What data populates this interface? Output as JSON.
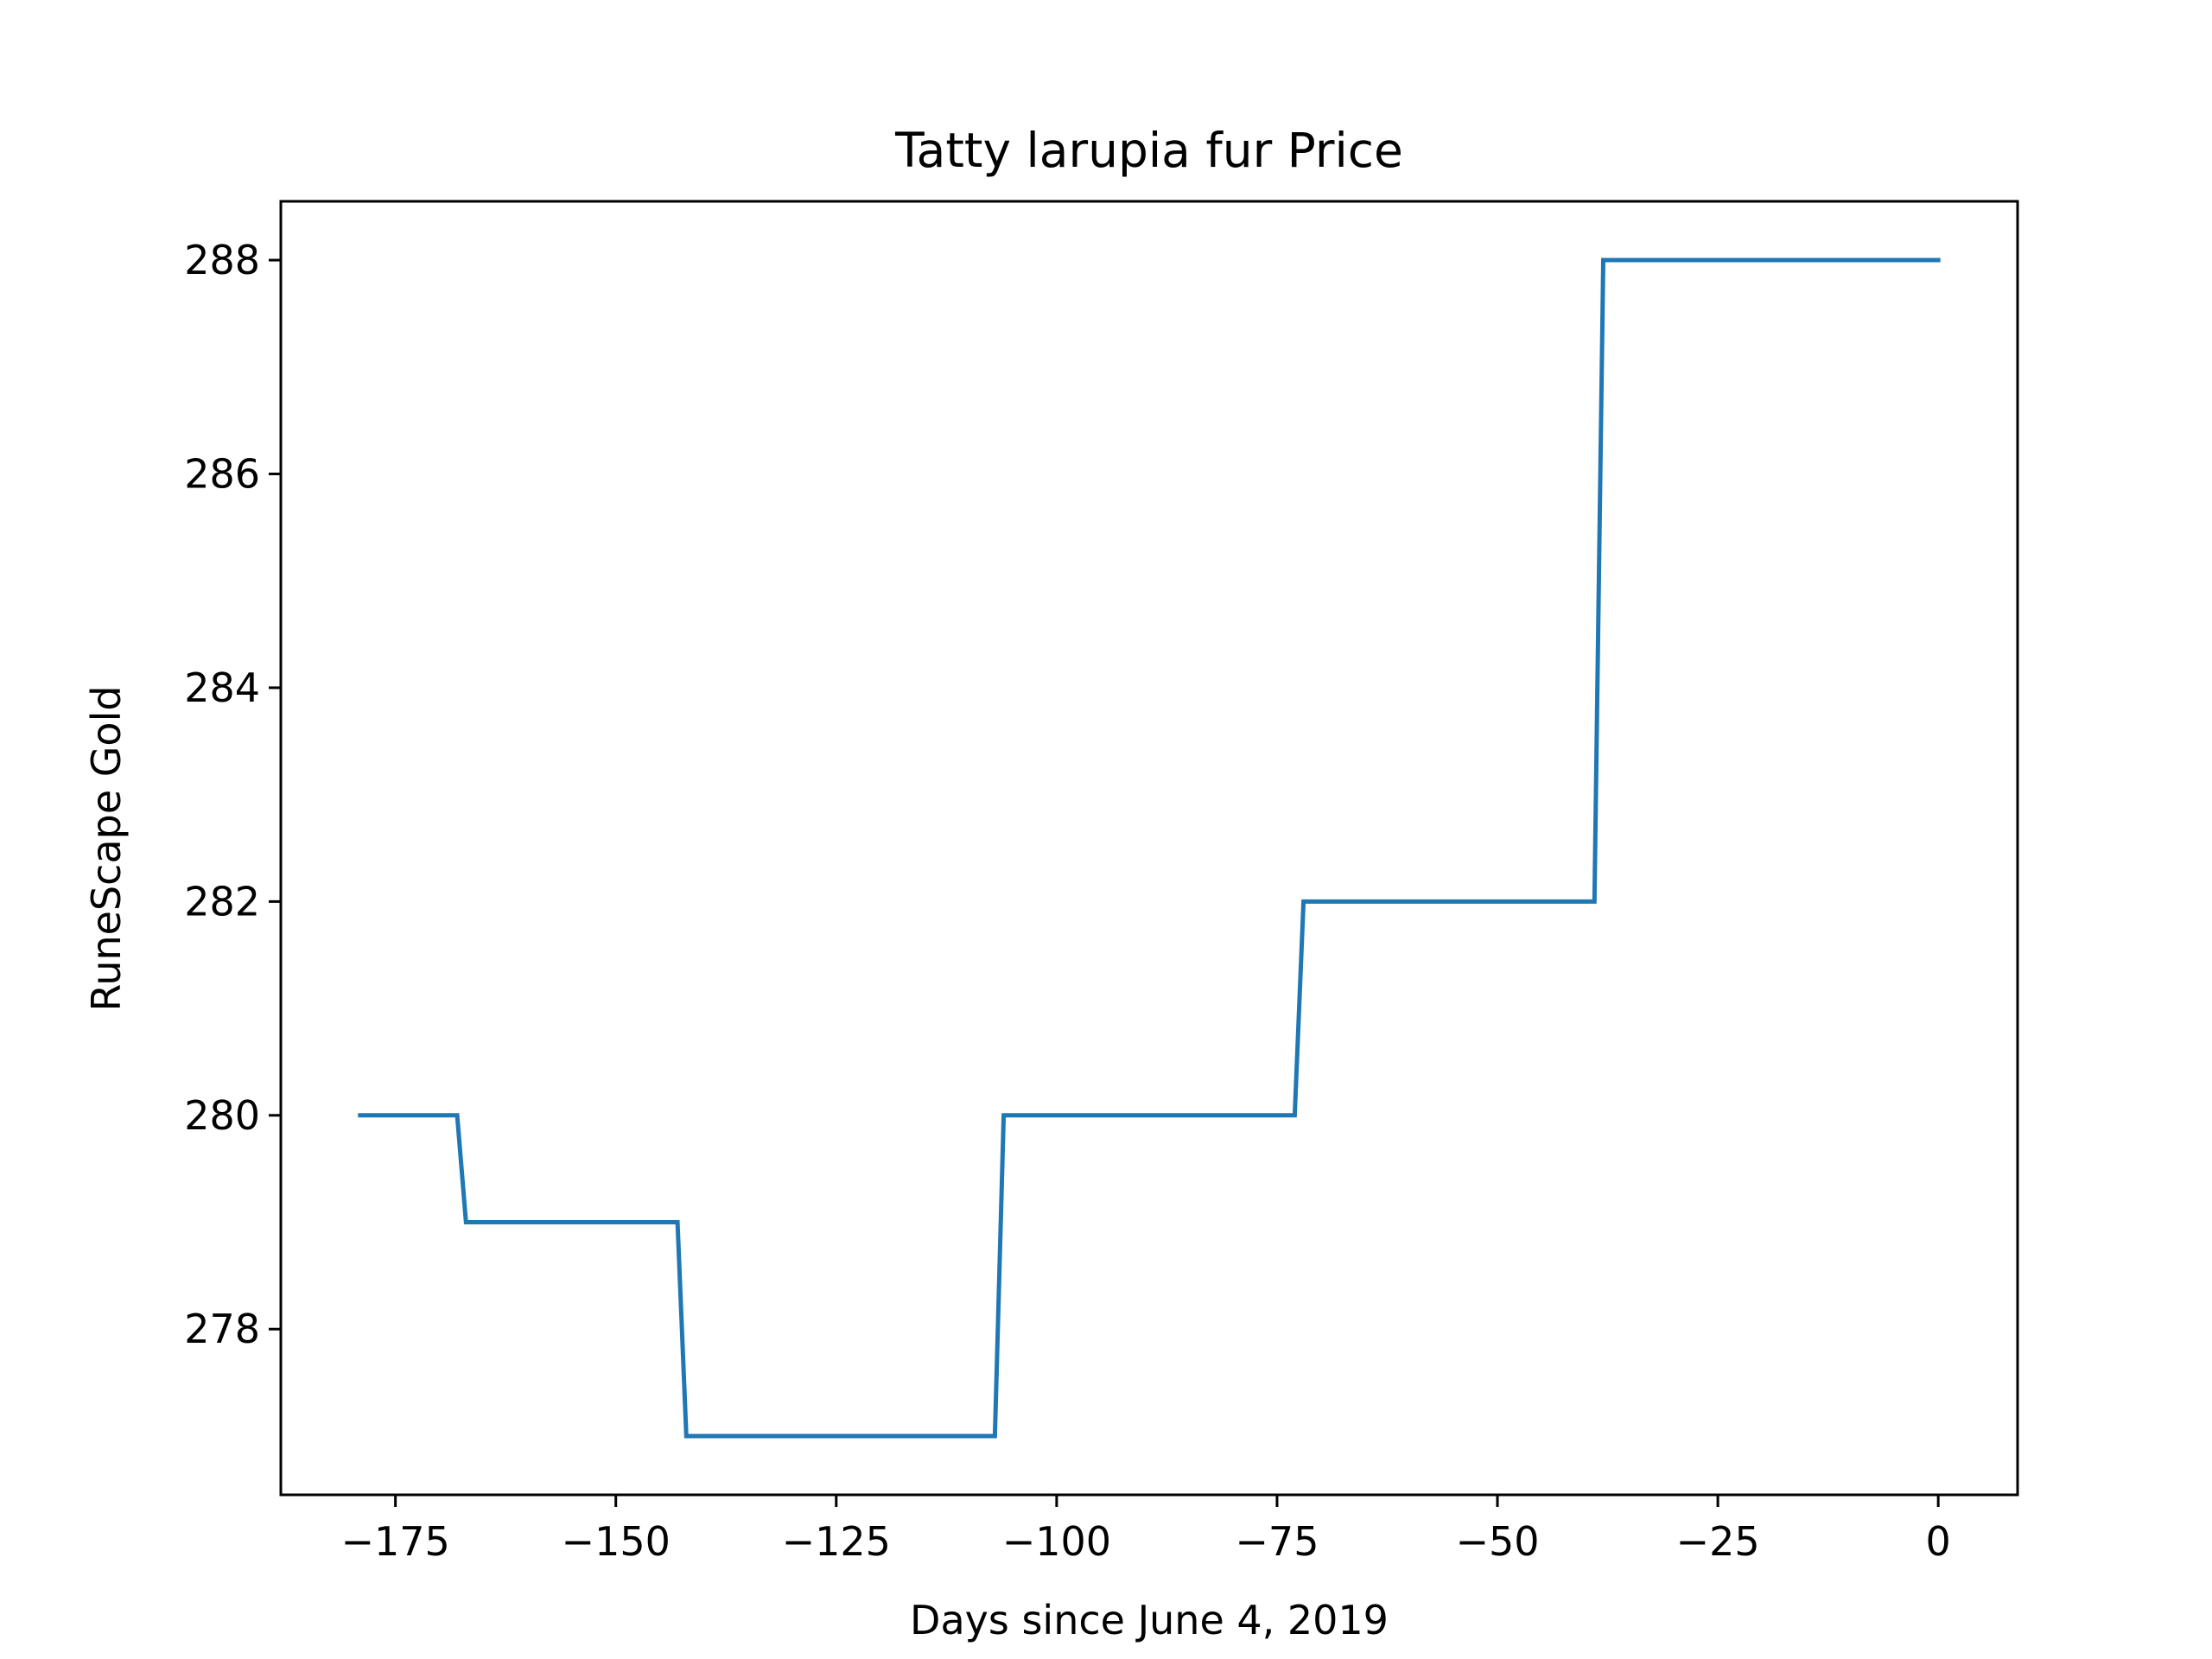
{
  "chart_data": {
    "type": "line",
    "title": "Tatty larupia fur Price",
    "xlabel": "Days since June 4, 2019",
    "ylabel": "RuneScape Gold",
    "xlim": [
      -188,
      9
    ],
    "ylim": [
      276.45,
      288.55
    ],
    "xticks": [
      -175,
      -150,
      -125,
      -100,
      -75,
      -50,
      -25,
      0
    ],
    "xtick_labels": [
      "−175",
      "−150",
      "−125",
      "−100",
      "−75",
      "−50",
      "−25",
      "0"
    ],
    "yticks": [
      278,
      280,
      282,
      284,
      286,
      288
    ],
    "ytick_labels": [
      "278",
      "280",
      "282",
      "284",
      "286",
      "288"
    ],
    "grid": false,
    "legend": "none",
    "series": [
      {
        "color": "#1f77b4",
        "x": [
          -179,
          -168,
          -167,
          -143,
          -142,
          -107,
          -106,
          -73,
          -72,
          -39,
          -38,
          0
        ],
        "y": [
          280,
          280,
          279,
          279,
          277,
          277,
          280,
          280,
          282,
          282,
          288,
          288
        ]
      }
    ]
  }
}
